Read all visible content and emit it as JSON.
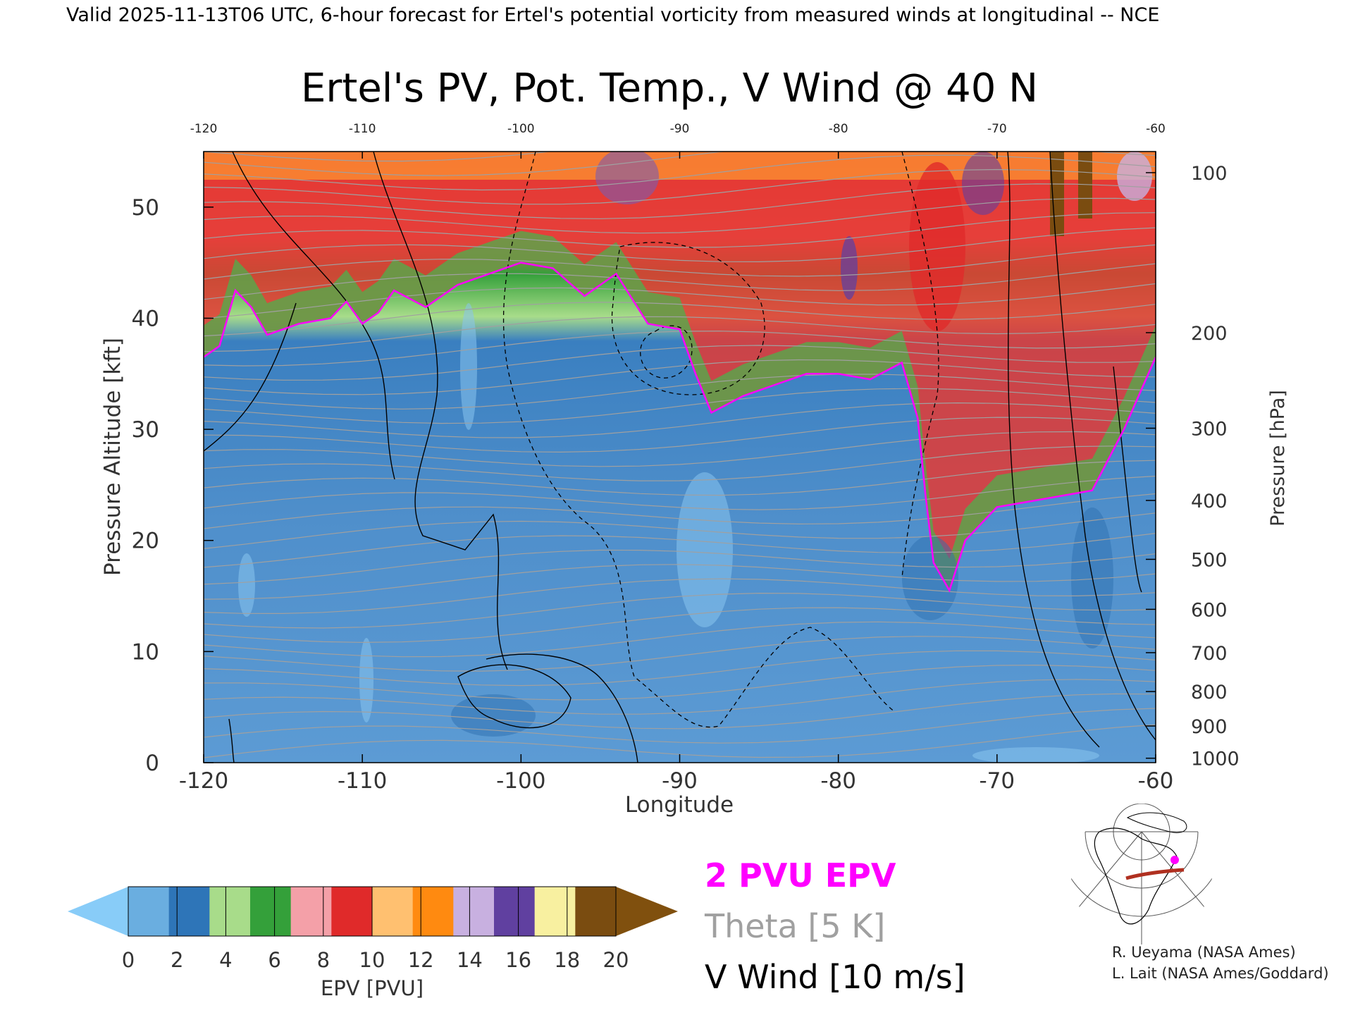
{
  "header": {
    "valid_line": "Valid 2025-11-13T06 UTC, 6-hour forecast for Ertel's potential vorticity from measured winds at longitudinal -- NCE"
  },
  "chart_data": {
    "type": "heatmap",
    "title": "Ertel's PV, Pot. Temp., V Wind @ 40 N",
    "xlabel": "Longitude",
    "ylabel_left": "Pressure Altitude [kft]",
    "ylabel_right": "Pressure [hPa]",
    "xlim": [
      -120,
      -60
    ],
    "ylim_kft": [
      0,
      55
    ],
    "x_ticks": [
      "-120",
      "-110",
      "-100",
      "-90",
      "-80",
      "-70",
      "-60"
    ],
    "x_tick_values": [
      -120,
      -110,
      -100,
      -90,
      -80,
      -70,
      -60
    ],
    "y_ticks_left": [
      "0",
      "10",
      "20",
      "30",
      "40",
      "50"
    ],
    "y_tick_values_left": [
      0,
      10,
      20,
      30,
      40,
      50
    ],
    "y_ticks_right": [
      "1000",
      "900",
      "800",
      "700",
      "600",
      "500",
      "400",
      "300",
      "200",
      "100"
    ],
    "y_tick_values_right_kft": [
      0.4,
      3.3,
      6.4,
      9.9,
      13.8,
      18.3,
      23.6,
      30.1,
      38.7,
      53.1
    ],
    "top_x_ticks": [
      "-120",
      "-110",
      "-100",
      "-90",
      "-80",
      "-70",
      "-60"
    ],
    "legend": {
      "epv_label": "2 PVU EPV",
      "theta_label": "Theta [5 K]",
      "wind_label": "V Wind [10 m/s]",
      "epv_color": "#ff00ff",
      "theta_color": "#a0a0a0",
      "wind_color": "#000000"
    },
    "colorbar": {
      "label": "EPV [PVU]",
      "ticks": [
        "0",
        "2",
        "4",
        "6",
        "8",
        "10",
        "12",
        "14",
        "16",
        "18",
        "20"
      ],
      "tick_values": [
        0,
        2,
        4,
        6,
        8,
        10,
        12,
        14,
        16,
        18,
        20
      ],
      "colors": [
        "#6aaee0",
        "#2e75b8",
        "#a8dc8a",
        "#34a03a",
        "#f4a0a8",
        "#e02a2a",
        "#ffc070",
        "#ff8a10",
        "#c8b0e0",
        "#6040a0",
        "#f8f0a0",
        "#7a4c10"
      ],
      "under_color": "#88ccf8",
      "over_color": "#80500e"
    },
    "tropopause_2pvu_kft": [
      [
        -120,
        36.5
      ],
      [
        -119,
        37.5
      ],
      [
        -118,
        42.5
      ],
      [
        -117,
        41
      ],
      [
        -116,
        38.5
      ],
      [
        -114,
        39.5
      ],
      [
        -112,
        40
      ],
      [
        -111,
        41.5
      ],
      [
        -110,
        39.5
      ],
      [
        -109,
        40.5
      ],
      [
        -108,
        42.5
      ],
      [
        -106,
        41
      ],
      [
        -104,
        43
      ],
      [
        -102,
        44
      ],
      [
        -100,
        45
      ],
      [
        -98,
        44.5
      ],
      [
        -96,
        42
      ],
      [
        -94,
        44
      ],
      [
        -92,
        39.5
      ],
      [
        -90,
        39
      ],
      [
        -89,
        35
      ],
      [
        -88,
        31.5
      ],
      [
        -86,
        33
      ],
      [
        -84,
        34
      ],
      [
        -82,
        35
      ],
      [
        -80,
        35
      ],
      [
        -78,
        34.5
      ],
      [
        -76,
        36
      ],
      [
        -75,
        31
      ],
      [
        -74.5,
        24
      ],
      [
        -74,
        18
      ],
      [
        -73,
        15.5
      ],
      [
        -72,
        20
      ],
      [
        -70,
        23
      ],
      [
        -68,
        23.5
      ],
      [
        -66,
        24
      ],
      [
        -64,
        24.5
      ],
      [
        -62,
        30
      ],
      [
        -60,
        36.5
      ]
    ]
  },
  "credits": {
    "line1": "R. Ueyama (NASA Ames)",
    "line2": "L. Lait (NASA Ames/Goddard)"
  }
}
